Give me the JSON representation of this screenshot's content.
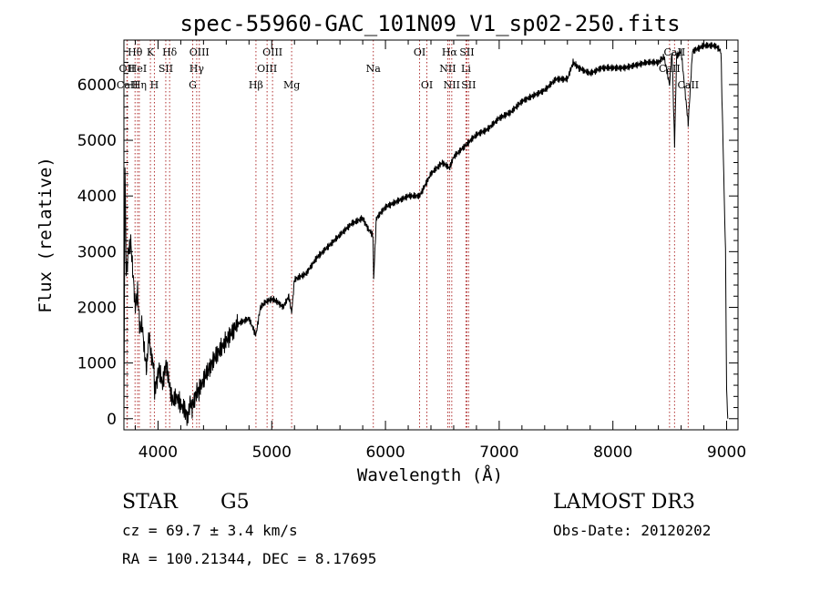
{
  "chart_data": {
    "type": "line",
    "title": "spec-55960-GAC_101N09_V1_sp02-250.fits",
    "xlabel": "Wavelength (Å)",
    "ylabel": "Flux (relative)",
    "xlim": [
      3700,
      9100
    ],
    "ylim": [
      -200,
      6800
    ],
    "xticks": [
      4000,
      5000,
      6000,
      7000,
      8000,
      9000
    ],
    "yticks": [
      0,
      1000,
      2000,
      3000,
      4000,
      5000,
      6000
    ],
    "grid": false,
    "line_color": "#000000",
    "marker_color": "#b03030",
    "series": [
      {
        "name": "flux",
        "x": [
          3700,
          3710,
          3720,
          3740,
          3760,
          3780,
          3800,
          3820,
          3840,
          3860,
          3880,
          3900,
          3920,
          3940,
          3960,
          3970,
          3990,
          4010,
          4040,
          4070,
          4100,
          4130,
          4160,
          4200,
          4240,
          4260,
          4280,
          4300,
          4320,
          4340,
          4360,
          4400,
          4450,
          4500,
          4600,
          4700,
          4800,
          4861,
          4900,
          4950,
          5000,
          5050,
          5100,
          5150,
          5175,
          5200,
          5300,
          5400,
          5500,
          5600,
          5700,
          5800,
          5850,
          5890,
          5896,
          5920,
          6000,
          6100,
          6200,
          6300,
          6400,
          6500,
          6563,
          6600,
          6700,
          6800,
          6900,
          7000,
          7100,
          7200,
          7300,
          7400,
          7500,
          7600,
          7650,
          7700,
          7800,
          7900,
          8000,
          8100,
          8200,
          8300,
          8400,
          8450,
          8498,
          8520,
          8542,
          8560,
          8600,
          8662,
          8700,
          8800,
          8900,
          8950,
          8990,
          9000,
          9010
        ],
        "values": [
          0,
          4500,
          2600,
          3000,
          3200,
          2600,
          2000,
          2300,
          1600,
          1700,
          1200,
          900,
          1500,
          1100,
          1000,
          500,
          700,
          900,
          600,
          1000,
          600,
          300,
          400,
          250,
          150,
          0,
          300,
          200,
          350,
          500,
          500,
          700,
          900,
          1100,
          1400,
          1700,
          1800,
          1500,
          2000,
          2100,
          2150,
          2100,
          2000,
          2200,
          1900,
          2500,
          2600,
          2900,
          3100,
          3300,
          3500,
          3600,
          3400,
          3300,
          2500,
          3600,
          3800,
          3900,
          4000,
          4000,
          4400,
          4600,
          4500,
          4700,
          4900,
          5100,
          5200,
          5400,
          5500,
          5700,
          5800,
          5900,
          6100,
          6100,
          6400,
          6300,
          6200,
          6300,
          6300,
          6300,
          6350,
          6400,
          6400,
          6500,
          6000,
          6600,
          4900,
          6500,
          6600,
          5300,
          6600,
          6700,
          6700,
          6600,
          3000,
          500,
          0
        ]
      }
    ],
    "lines": [
      {
        "label": "Hθ",
        "x": 3798,
        "row": 0
      },
      {
        "label": "OII",
        "x": 3727,
        "row": 1
      },
      {
        "label": "HeI",
        "x": 3820,
        "row": 1
      },
      {
        "label": "CaII",
        "x": 3730,
        "row": 2
      },
      {
        "label": "Hη",
        "x": 3835,
        "row": 2
      },
      {
        "label": "K",
        "x": 3933,
        "row": 0
      },
      {
        "label": "SII",
        "x": 4068,
        "row": 1
      },
      {
        "label": "H",
        "x": 3968,
        "row": 2
      },
      {
        "label": "Hδ",
        "x": 4102,
        "row": 0
      },
      {
        "label": "OIII",
        "x": 4363,
        "row": 0
      },
      {
        "label": "Hγ",
        "x": 4340,
        "row": 1
      },
      {
        "label": "G",
        "x": 4305,
        "row": 2
      },
      {
        "label": "Hβ",
        "x": 4861,
        "row": 2
      },
      {
        "label": "OIII",
        "x": 5007,
        "row": 0
      },
      {
        "label": "OIII",
        "x": 4959,
        "row": 1
      },
      {
        "label": "Mg",
        "x": 5175,
        "row": 2
      },
      {
        "label": "Na",
        "x": 5893,
        "row": 1
      },
      {
        "label": "OI",
        "x": 6300,
        "row": 0
      },
      {
        "label": "OI",
        "x": 6364,
        "row": 2
      },
      {
        "label": "Hα",
        "x": 6563,
        "row": 0
      },
      {
        "label": "SII",
        "x": 6716,
        "row": 0
      },
      {
        "label": "NII",
        "x": 6548,
        "row": 1
      },
      {
        "label": "Li",
        "x": 6708,
        "row": 1
      },
      {
        "label": "NII",
        "x": 6583,
        "row": 2
      },
      {
        "label": "SII",
        "x": 6731,
        "row": 2
      },
      {
        "label": "CaII",
        "x": 8542,
        "row": 0
      },
      {
        "label": "CaII",
        "x": 8498,
        "row": 1
      },
      {
        "label": "CaII",
        "x": 8662,
        "row": 2
      }
    ]
  },
  "info": {
    "object_class": "STAR",
    "subclass": "G5",
    "redshift": "cz = 69.7 ± 3.4 km/s",
    "coords": "RA = 100.21344, DEC =    8.17695",
    "survey": "LAMOST DR3",
    "obs_date": "Obs-Date: 20120202"
  }
}
